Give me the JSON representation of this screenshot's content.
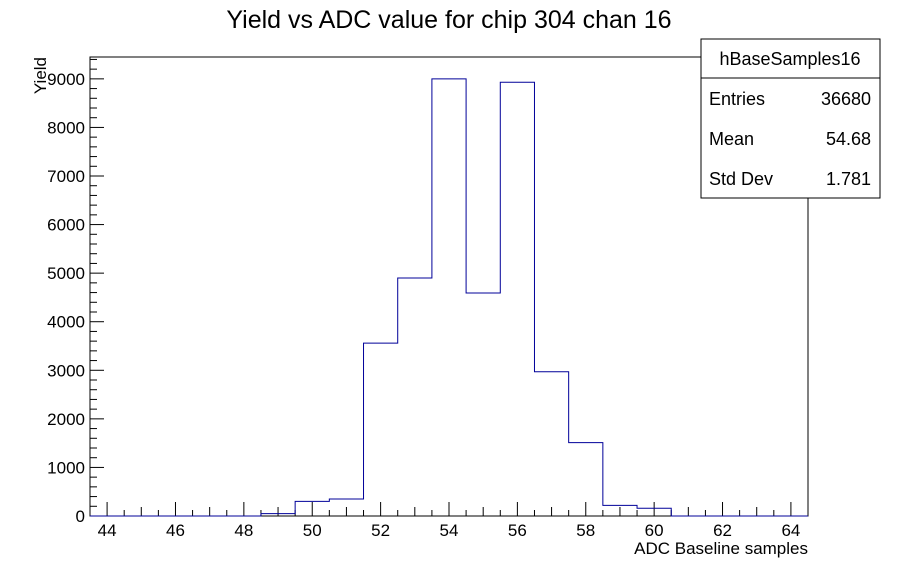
{
  "chart_data": {
    "type": "bar",
    "title": "Yield vs ADC value for chip 304 chan 16",
    "xlabel": "ADC Baseline samples",
    "ylabel": "Yield",
    "xlim": [
      43.5,
      64.5
    ],
    "ylim": [
      0,
      9450
    ],
    "bin_width": 1,
    "x_ticks": [
      44,
      46,
      48,
      50,
      52,
      54,
      56,
      58,
      60,
      62,
      64
    ],
    "y_ticks": [
      0,
      1000,
      2000,
      3000,
      4000,
      5000,
      6000,
      7000,
      8000,
      9000
    ],
    "categories": [
      44,
      45,
      46,
      47,
      48,
      49,
      50,
      51,
      52,
      53,
      54,
      55,
      56,
      57,
      58,
      59,
      60,
      61,
      62,
      63,
      64
    ],
    "values": [
      0,
      0,
      0,
      0,
      0,
      50,
      300,
      350,
      3560,
      4900,
      9000,
      4590,
      8930,
      2970,
      1510,
      220,
      160,
      0,
      0,
      0,
      0
    ],
    "grid": false,
    "line_color": "#000099",
    "stats_box": {
      "name": "hBaseSamples16",
      "rows": [
        {
          "label": "Entries",
          "value": "36680"
        },
        {
          "label": "Mean",
          "value": "54.68"
        },
        {
          "label": "Std Dev",
          "value": "1.781"
        }
      ],
      "placement": "top-right"
    }
  }
}
